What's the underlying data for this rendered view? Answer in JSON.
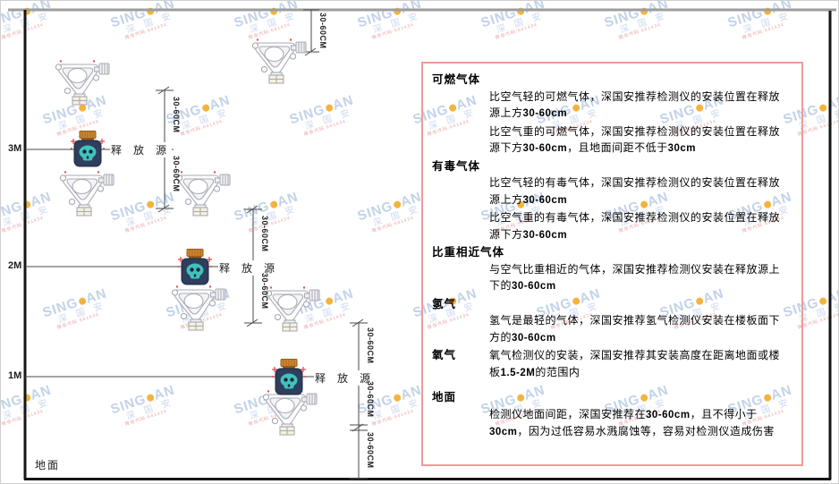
{
  "watermark": {
    "brand_left": "SING",
    "brand_right": "AN",
    "cn": "深 国 安",
    "code": "微信代码:681434"
  },
  "diagram": {
    "dim_label": "30-60CM",
    "source_label": "释 放 源",
    "ground_label": "地面",
    "height_labels": [
      "3M",
      "2M",
      "1M"
    ]
  },
  "panel": {
    "border_color": "#f19a9a",
    "sections": [
      {
        "heading": "可燃气体",
        "paragraphs": [
          [
            {
              "t": "比空气轻的可燃气体，深国安推荐检测仪的安装位置在释放源上方"
            },
            {
              "t": "30-60cm",
              "b": true
            }
          ],
          [
            {
              "t": "比空气重的可燃气体，深国安推荐检测仪的安装位置在释放源下方"
            },
            {
              "t": "30-60cm",
              "b": true
            },
            {
              "t": "，且地面间距不低于"
            },
            {
              "t": "30cm",
              "b": true
            }
          ]
        ]
      },
      {
        "heading": "有毒气体",
        "paragraphs": [
          [
            {
              "t": "比空气轻的有毒气体，深国安推荐检测仪的安装位置在释放源上方"
            },
            {
              "t": "30-60cm",
              "b": true
            }
          ],
          [
            {
              "t": "比空气重的有毒气体，深国安推荐检测仪的安装位置在释放源下方"
            },
            {
              "t": "30-60cm",
              "b": true
            }
          ]
        ]
      },
      {
        "heading": "比重相近气体",
        "paragraphs": [
          [
            {
              "t": "与空气比重相近的气体，深国安推荐检测仪安装在释放源上下的"
            },
            {
              "t": "30-60cm",
              "b": true
            }
          ]
        ]
      },
      {
        "heading": "氢气",
        "paragraphs": [
          [
            {
              "t": "氢气是最轻的气体，深国安推荐氢气检测仪安装在楼板面下方的"
            },
            {
              "t": "30-60cm",
              "b": true
            }
          ]
        ]
      },
      {
        "heading": "氧气",
        "paragraphs": [
          [
            {
              "t": "氧气检测仪的安装，深国安推荐其安装高度在距离地面或楼板"
            },
            {
              "t": "1.5-2M",
              "b": true
            },
            {
              "t": "的范围内"
            }
          ]
        ]
      },
      {
        "heading": "地面",
        "paragraphs": [
          [
            {
              "t": "检测仪地面间距，深国安推荐在"
            },
            {
              "t": "30-60cm",
              "b": true
            },
            {
              "t": "，且不得小于"
            },
            {
              "t": "30cm",
              "b": true
            },
            {
              "t": "，因为过低容易水溅腐蚀等，容易对检测仪造成伤害"
            }
          ]
        ]
      }
    ]
  }
}
